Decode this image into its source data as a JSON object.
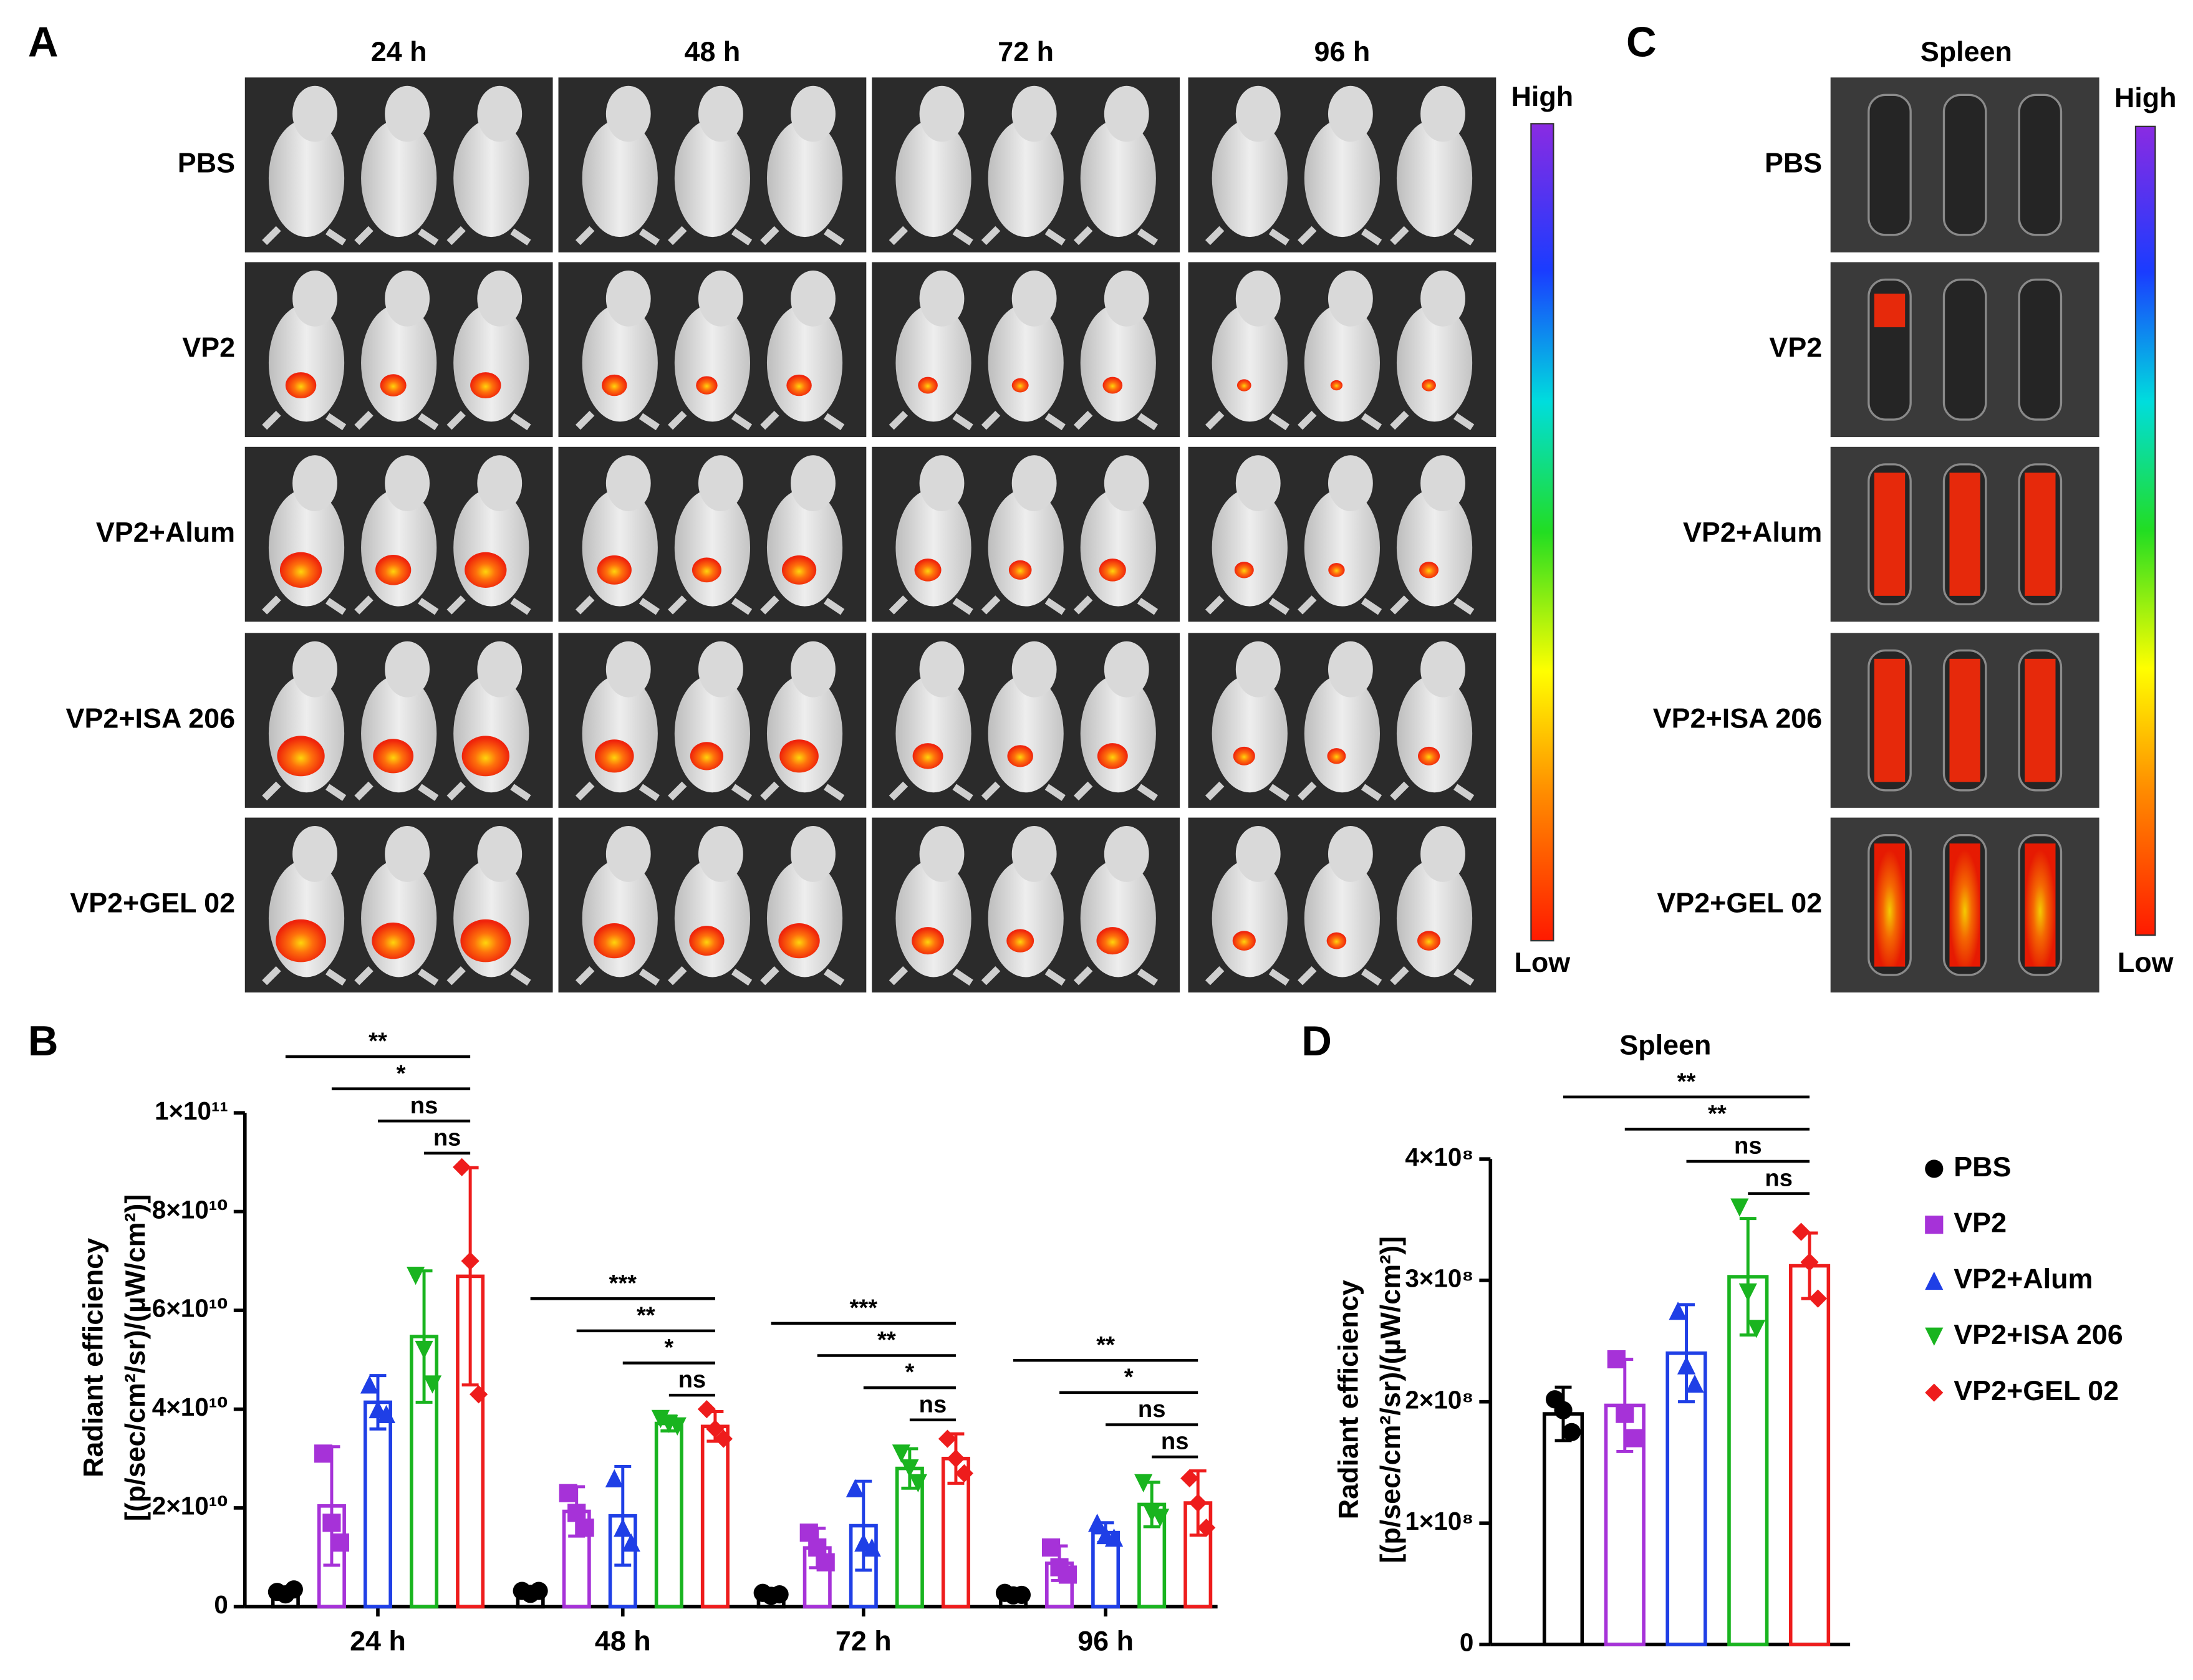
{
  "panel_labels": [
    "A",
    "B",
    "C",
    "D"
  ],
  "imaging": {
    "times": [
      "24 h",
      "48 h",
      "72 h",
      "96 h"
    ],
    "groups": [
      "PBS",
      "VP2",
      "VP2+Alum",
      "VP2+ISA 206",
      "VP2+GEL 02"
    ],
    "scale_high": "High",
    "scale_low": "Low"
  },
  "spleen_imaging": {
    "title": "Spleen",
    "groups": [
      "PBS",
      "VP2",
      "VP2+Alum",
      "VP2+ISA 206",
      "VP2+GEL 02"
    ],
    "scale_high": "High",
    "scale_low": "Low"
  },
  "chart_data": [
    {
      "type": "bar",
      "categories": [
        "24 h",
        "48 h",
        "72 h",
        "96 h"
      ],
      "ylabel": [
        "Radiant efficiency",
        "[(p/sec/cm²/sr)/(µW/cm²)]"
      ],
      "ylim": [
        0,
        100000000000
      ],
      "yticks": [
        0,
        {
          "value": 20000000000,
          "label": "2×10¹⁰"
        },
        {
          "value": 40000000000,
          "label": "4×10¹⁰"
        },
        {
          "value": 60000000000,
          "label": "6×10¹⁰"
        },
        {
          "value": 80000000000,
          "label": "8×10¹⁰"
        },
        {
          "value": 100000000000,
          "label": "1×10¹¹"
        }
      ],
      "series": [
        {
          "color": "#000000",
          "marker": "circle",
          "values": [
            3000000000,
            3000000000,
            2500000000,
            2500000000
          ],
          "errors": [
            500000000,
            500000000,
            500000000,
            500000000
          ],
          "points": [
            [
              3000000000,
              2500000000,
              3500000000
            ],
            [
              3200000000,
              2600000000,
              3200000000
            ],
            [
              2800000000,
              2200000000,
              2500000000
            ],
            [
              2800000000,
              2300000000,
              2400000000
            ]
          ]
        },
        {
          "color": "#a632d8",
          "marker": "square",
          "values": [
            20400000000,
            19300000000,
            11900000000,
            8800000000
          ],
          "errors": [
            12000000000,
            5000000000,
            4000000000,
            3500000000
          ],
          "points": [
            [
              31000000000,
              17000000000,
              13000000000
            ],
            [
              23000000000,
              19000000000,
              16000000000
            ],
            [
              15000000000,
              12000000000,
              9000000000
            ],
            [
              12000000000,
              8000000000,
              6500000000
            ]
          ]
        },
        {
          "color": "#1f3fe6",
          "marker": "triangle",
          "values": [
            41400000000,
            18400000000,
            16400000000,
            15000000000
          ],
          "errors": [
            5400000000,
            10000000000,
            9000000000,
            2000000000
          ],
          "points": [
            [
              45000000000,
              40000000000,
              39000000000
            ],
            [
              26000000000,
              16000000000,
              13000000000
            ],
            [
              24000000000,
              13000000000,
              12000000000
            ],
            [
              17000000000,
              14500000000,
              14000000000
            ]
          ]
        },
        {
          "color": "#19b41f",
          "marker": "down-triangle",
          "values": [
            54700000000,
            37100000000,
            28000000000,
            20700000000
          ],
          "errors": [
            13300000000,
            1500000000,
            4000000000,
            4500000000
          ],
          "points": [
            [
              67000000000,
              52000000000,
              45000000000
            ],
            [
              38000000000,
              37000000000,
              36500000000
            ],
            [
              31000000000,
              28000000000,
              25000000000
            ],
            [
              25000000000,
              19000000000,
              18000000000
            ]
          ]
        },
        {
          "color": "#ee1c1c",
          "marker": "diamond",
          "values": [
            66900000000,
            36500000000,
            30000000000,
            21000000000
          ],
          "errors": [
            22000000000,
            3000000000,
            5000000000,
            6500000000
          ],
          "points": [
            [
              89000000000,
              70000000000,
              43000000000
            ],
            [
              40000000000,
              36000000000,
              34000000000
            ],
            [
              34000000000,
              30000000000,
              27000000000
            ],
            [
              26000000000,
              21000000000,
              16000000000
            ]
          ]
        }
      ],
      "significance": [
        [
          "**",
          "*",
          "ns",
          "ns"
        ],
        [
          "***",
          "**",
          "*",
          "ns"
        ],
        [
          "***",
          "**",
          "*",
          "ns"
        ],
        [
          "**",
          "*",
          "ns",
          "ns"
        ]
      ]
    },
    {
      "type": "bar",
      "title": "Spleen",
      "ylabel": [
        "Radiant efficiency",
        "[(p/sec/cm²/sr)/(µW/cm²)]"
      ],
      "ylim": [
        0,
        400000000
      ],
      "yticks": [
        0,
        {
          "value": 100000000,
          "label": "1×10⁸"
        },
        {
          "value": 200000000,
          "label": "2×10⁸"
        },
        {
          "value": 300000000,
          "label": "3×10⁸"
        },
        {
          "value": 400000000,
          "label": "4×10⁸"
        }
      ],
      "series": [
        {
          "name": "PBS",
          "color": "#000000",
          "marker": "circle",
          "values": [
            190000000
          ],
          "errors": [
            22000000
          ],
          "points": [
            [
              202000000,
              193000000,
              175000000
            ]
          ]
        },
        {
          "name": "VP2",
          "color": "#a632d8",
          "marker": "square",
          "values": [
            197000000
          ],
          "errors": [
            38000000
          ],
          "points": [
            [
              235000000,
              190000000,
              170000000
            ]
          ]
        },
        {
          "name": "VP2+Alum",
          "color": "#1f3fe6",
          "marker": "triangle",
          "values": [
            240000000
          ],
          "errors": [
            40000000
          ],
          "points": [
            [
              275000000,
              230000000,
              215000000
            ]
          ]
        },
        {
          "name": "VP2+ISA 206",
          "color": "#19b41f",
          "marker": "down-triangle",
          "values": [
            303000000
          ],
          "errors": [
            48000000
          ],
          "points": [
            [
              360000000,
              290000000,
              260000000
            ]
          ]
        },
        {
          "name": "VP2+GEL 02",
          "color": "#ee1c1c",
          "marker": "diamond",
          "values": [
            312000000
          ],
          "errors": [
            27000000
          ],
          "points": [
            [
              340000000,
              315000000,
              285000000
            ]
          ]
        }
      ],
      "significance": [
        [
          "**",
          "**",
          "ns",
          "ns"
        ]
      ]
    }
  ]
}
